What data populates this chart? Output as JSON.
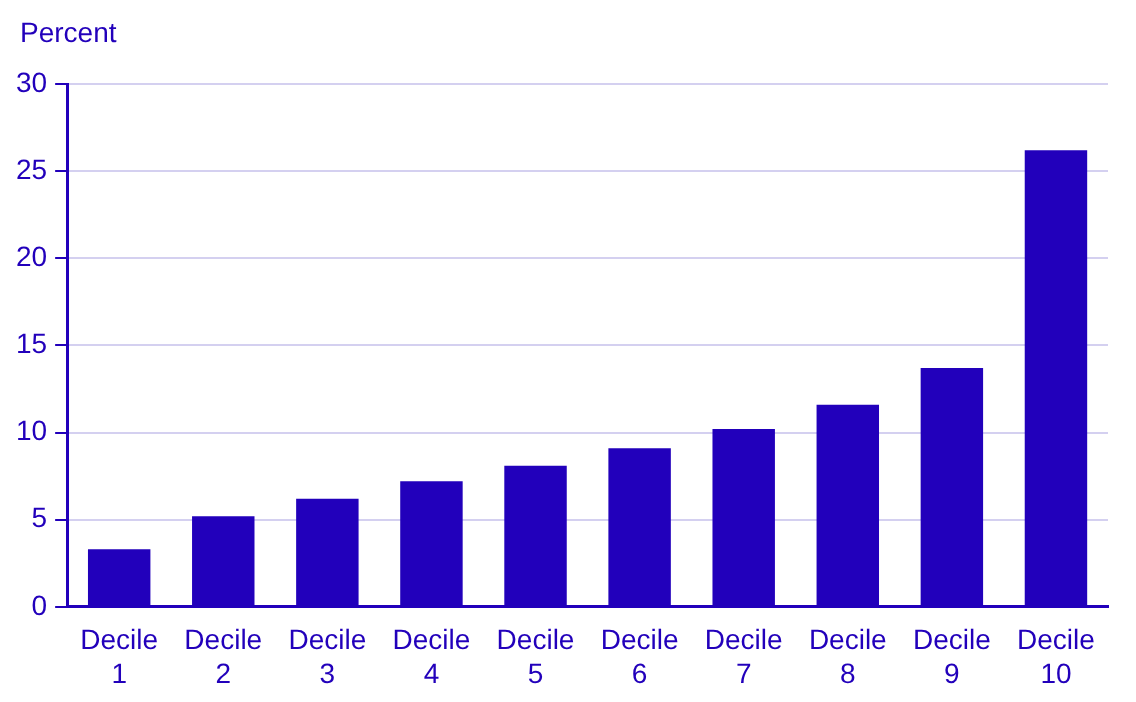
{
  "chart_data": {
    "type": "bar",
    "ylabel": "Percent",
    "categories": [
      "Decile 1",
      "Decile 2",
      "Decile 3",
      "Decile 4",
      "Decile 5",
      "Decile 6",
      "Decile 7",
      "Decile 8",
      "Decile 9",
      "Decile 10"
    ],
    "values": [
      3.3,
      5.2,
      6.2,
      7.2,
      8.1,
      9.1,
      10.2,
      11.6,
      13.7,
      26.2
    ],
    "color": "#2200bb",
    "ylim": [
      0,
      30
    ],
    "yticks": [
      0,
      5,
      10,
      15,
      20,
      25,
      30
    ],
    "grid": "y",
    "legend": false
  }
}
